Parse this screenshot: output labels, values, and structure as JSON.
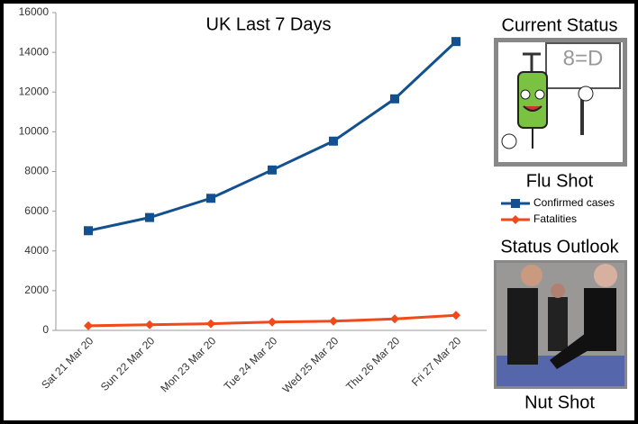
{
  "chart_data": {
    "type": "line",
    "title": "UK Last 7 Days",
    "categories": [
      "Sat 21 Mar 20",
      "Sun 22 Mar 20",
      "Mon 23 Mar 20",
      "Tue 24 Mar 20",
      "Wed 25 Mar 20",
      "Thu 26 Mar 20",
      "Fri 27 Mar 20"
    ],
    "series": [
      {
        "name": "Confirmed cases",
        "color": "#13508f",
        "marker": "square",
        "values": [
          5018,
          5683,
          6650,
          8077,
          9529,
          11658,
          14543
        ]
      },
      {
        "name": "Fatalities",
        "color": "#f04a1a",
        "marker": "diamond",
        "values": [
          233,
          281,
          335,
          422,
          465,
          578,
          759
        ]
      }
    ],
    "ylim": [
      0,
      16000
    ],
    "yticks": [
      0,
      2000,
      4000,
      6000,
      8000,
      10000,
      12000,
      14000,
      16000
    ],
    "grid": false
  },
  "panel": {
    "current_heading": "Current Status",
    "sign_text": "8=D",
    "current_caption": "Flu Shot",
    "outlook_heading": "Status Outlook",
    "outlook_caption": "Nut Shot"
  }
}
